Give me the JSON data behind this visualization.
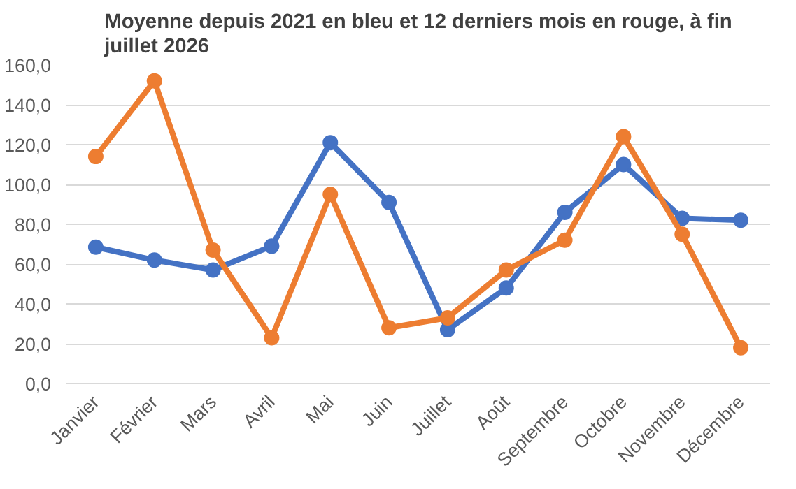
{
  "chart_data": {
    "type": "line",
    "title": "Moyenne depuis 2021 en bleu et 12 derniers mois en rouge, à fin juillet 2026",
    "categories": [
      "Janvier",
      "Février",
      "Mars",
      "Avril",
      "Mai",
      "Juin",
      "Juillet",
      "Août",
      "Septembre",
      "Octobre",
      "Novembre",
      "Décembre"
    ],
    "series": [
      {
        "color": "#4472c4",
        "values": [
          68.5,
          62,
          57,
          69,
          121,
          91,
          27,
          48,
          86,
          110,
          83,
          82
        ]
      },
      {
        "color": "#ed7d31",
        "values": [
          114,
          152,
          67,
          23,
          95,
          28,
          33,
          57,
          72,
          124,
          75,
          18
        ]
      }
    ],
    "ylim": [
      0,
      160
    ],
    "yticks": [
      {
        "value": 0,
        "label": "0,0"
      },
      {
        "value": 20,
        "label": "20,0"
      },
      {
        "value": 40,
        "label": "40,0"
      },
      {
        "value": 60,
        "label": "60,0"
      },
      {
        "value": 80,
        "label": "80,0"
      },
      {
        "value": 100,
        "label": "100,0"
      },
      {
        "value": 120,
        "label": "120,0"
      },
      {
        "value": 140,
        "label": "140,0"
      },
      {
        "value": 160,
        "label": "160,0"
      }
    ],
    "grid": "y",
    "marker": "circle",
    "line_style": "solid"
  }
}
